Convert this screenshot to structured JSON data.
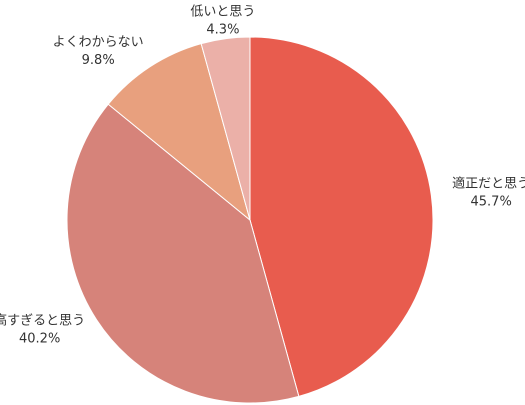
{
  "chart_data": {
    "type": "pie",
    "categories": [
      "適正だと思う",
      "高すぎると思う",
      "よくわからない",
      "低いと思う"
    ],
    "values": [
      45.7,
      40.2,
      9.8,
      4.3
    ],
    "value_labels": [
      "45.7%",
      "40.2%",
      "9.8%",
      "4.3%"
    ],
    "colors": [
      "#e85c4e",
      "#d6837a",
      "#e8a07e",
      "#ebb0a8"
    ]
  }
}
